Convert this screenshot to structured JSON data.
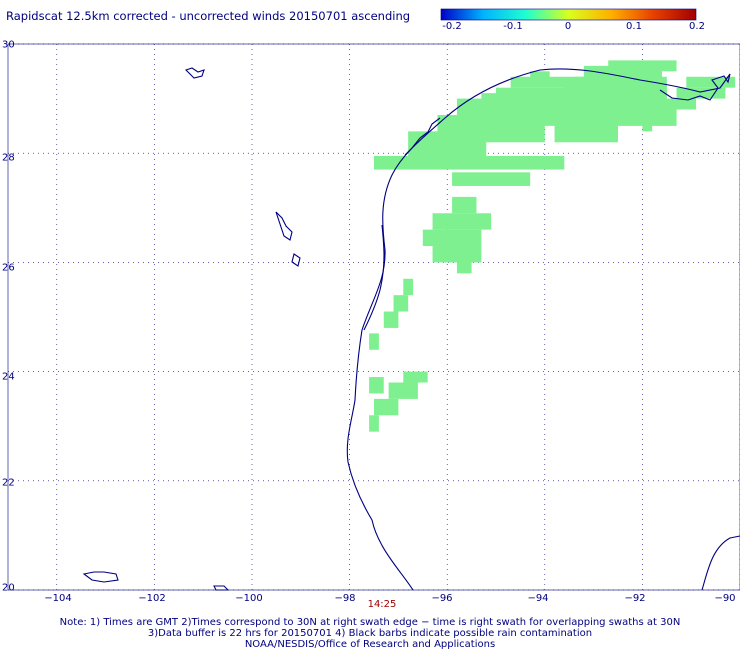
{
  "title": "Rapidscat 12.5km corrected - uncorrected winds 20150701 ascending",
  "colorbar": {
    "labels": [
      "-0.2",
      "-0.1",
      "0",
      "0.1",
      "0.2"
    ],
    "values": [
      -0.2,
      -0.1,
      0,
      0.1,
      0.2
    ],
    "colors": [
      "#0000c8",
      "#00b4ff",
      "#20ffd0",
      "#d8ff20",
      "#ffb000",
      "#e84000",
      "#a00000"
    ]
  },
  "axes": {
    "x_ticks": [
      {
        "value": -104,
        "label": "−104"
      },
      {
        "value": -102,
        "label": "−102"
      },
      {
        "value": -100,
        "label": "−100"
      },
      {
        "value": -98,
        "label": "−98"
      },
      {
        "value": -96,
        "label": "−96"
      },
      {
        "value": -94,
        "label": "−94"
      },
      {
        "value": -92,
        "label": "−92"
      },
      {
        "value": -90,
        "label": "−90"
      }
    ],
    "y_ticks": [
      {
        "value": 20,
        "label": "20"
      },
      {
        "value": 22,
        "label": "22"
      },
      {
        "value": 24,
        "label": "24"
      },
      {
        "value": 26,
        "label": "26"
      },
      {
        "value": 28,
        "label": "28"
      },
      {
        "value": 30,
        "label": "30"
      }
    ],
    "lon_range": [
      -105,
      -90
    ],
    "lat_range": [
      20,
      30
    ],
    "grid": "dotted"
  },
  "time_label": "14:25",
  "notes": [
    "Note: 1) Times are GMT 2)Times correspond to 30N at right swath edge − time is right swath for overlapping swaths at 30N",
    "3)Data buffer is 22 hrs for 20150701 4) Black barbs indicate possible rain contamination",
    "NOAA/NESDIS/Office of Research and Applications"
  ],
  "swath_color": "#7ff08f",
  "coast_color": "#000080",
  "chart_data": {
    "type": "heatmap",
    "value_range": [
      -0.2,
      0.2
    ],
    "cell_value": 0,
    "cell_size_deg": 0.17,
    "cells": [
      [
        -97.5,
        27.7,
        3.9,
        0.25
      ],
      [
        -95.9,
        27.4,
        1.6,
        0.25
      ],
      [
        -96.8,
        27.9,
        1.6,
        0.5
      ],
      [
        -96.2,
        28.2,
        2.2,
        0.5
      ],
      [
        -95.8,
        28.5,
        3.3,
        0.5
      ],
      [
        -95.3,
        28.8,
        2.8,
        0.3
      ],
      [
        -95.0,
        29.0,
        2.5,
        0.2
      ],
      [
        -94.7,
        29.2,
        2.2,
        0.2
      ],
      [
        -94.3,
        29.3,
        0.4,
        0.2
      ],
      [
        -93.8,
        28.2,
        1.3,
        0.3
      ],
      [
        -93.8,
        28.5,
        2.5,
        0.5
      ],
      [
        -93.6,
        28.8,
        2.1,
        0.5
      ],
      [
        -93.4,
        29.0,
        1.9,
        0.4
      ],
      [
        -93.2,
        29.3,
        1.6,
        0.3
      ],
      [
        -92.7,
        29.5,
        1.4,
        0.2
      ],
      [
        -92.0,
        28.4,
        0.2,
        0.2
      ],
      [
        -91.8,
        28.6,
        0.5,
        0.2
      ],
      [
        -91.5,
        28.8,
        0.6,
        0.2
      ],
      [
        -91.3,
        29.0,
        1.0,
        0.2
      ],
      [
        -91.1,
        29.2,
        1.0,
        0.2
      ],
      [
        -95.8,
        25.8,
        0.3,
        0.3
      ],
      [
        -96.3,
        26.0,
        1.0,
        0.3
      ],
      [
        -96.5,
        26.3,
        1.2,
        0.3
      ],
      [
        -96.3,
        26.6,
        1.2,
        0.3
      ],
      [
        -95.9,
        26.9,
        0.5,
        0.3
      ],
      [
        -96.9,
        25.4,
        0.2,
        0.3
      ],
      [
        -97.1,
        25.1,
        0.3,
        0.3
      ],
      [
        -97.3,
        24.8,
        0.3,
        0.3
      ],
      [
        -97.6,
        24.4,
        0.2,
        0.3
      ],
      [
        -97.6,
        23.6,
        0.3,
        0.3
      ],
      [
        -97.6,
        22.9,
        0.2,
        0.3
      ],
      [
        -97.5,
        23.2,
        0.5,
        0.3
      ],
      [
        -97.2,
        23.5,
        0.6,
        0.3
      ],
      [
        -96.9,
        23.8,
        0.5,
        0.2
      ]
    ]
  }
}
